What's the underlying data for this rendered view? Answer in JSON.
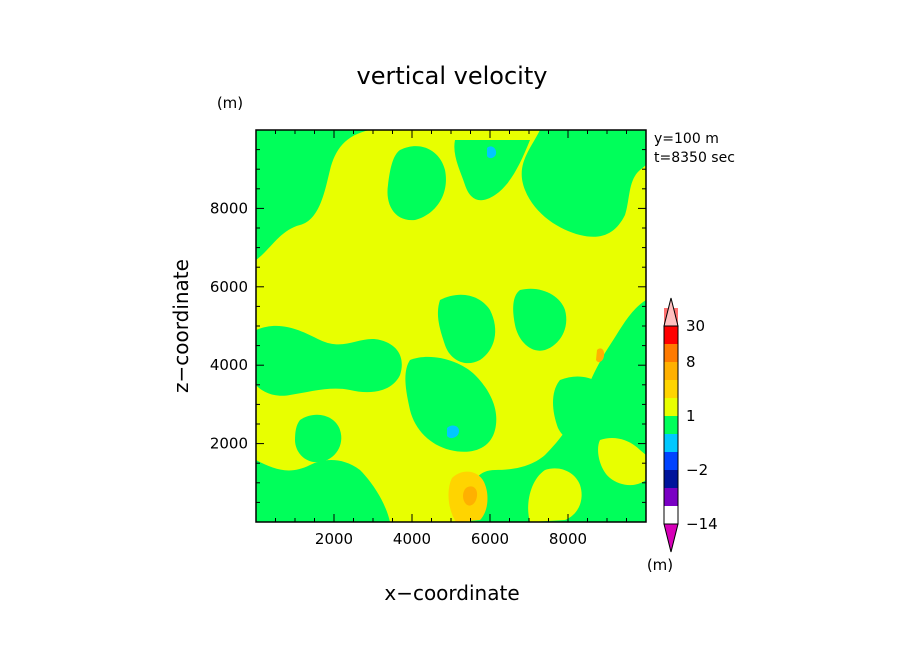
{
  "chart_data": {
    "type": "contour",
    "title": "vertical velocity",
    "xlabel": "x−coordinate",
    "ylabel": "z−coordinate",
    "x_unit": "(m)",
    "y_unit": "(m)",
    "annotations": [
      "y=100 m",
      "t=8350 sec"
    ],
    "xlim": [
      0,
      10000
    ],
    "ylim": [
      0,
      10000
    ],
    "x_ticks": [
      2000,
      4000,
      6000,
      8000
    ],
    "y_ticks": [
      2000,
      4000,
      6000,
      8000
    ],
    "grid": false,
    "colorbar": {
      "unit": "(m)",
      "labels": [
        {
          "text": "30",
          "level": 30
        },
        {
          "text": "8",
          "level": 8
        },
        {
          "text": "1",
          "level": 1
        },
        {
          "text": "−2",
          "level": -2
        },
        {
          "text": "−14",
          "level": -14
        }
      ],
      "bins": [
        {
          "lo": -100,
          "hi": -14,
          "color": "#d600b8"
        },
        {
          "lo": -14,
          "hi": -8,
          "color": "#7a00c4"
        },
        {
          "lo": -8,
          "hi": -4,
          "color": "#00149b"
        },
        {
          "lo": -4,
          "hi": -2,
          "color": "#0043ff"
        },
        {
          "lo": -2,
          "hi": -1,
          "color": "#00c8ff"
        },
        {
          "lo": -1,
          "hi": 0,
          "color": "#00ff5a"
        },
        {
          "lo": 0,
          "hi": 1,
          "color": "#e8ff00"
        },
        {
          "lo": 1,
          "hi": 2,
          "color": "#ffd400"
        },
        {
          "lo": 2,
          "hi": 4,
          "color": "#ffb000"
        },
        {
          "lo": 4,
          "hi": 8,
          "color": "#ff7a00"
        },
        {
          "lo": 8,
          "hi": 14,
          "color": "#ff0000"
        },
        {
          "lo": 14,
          "hi": 30,
          "color": "#ff7070"
        },
        {
          "lo": 30,
          "hi": 100,
          "color": "#ffc0c0"
        }
      ]
    }
  }
}
